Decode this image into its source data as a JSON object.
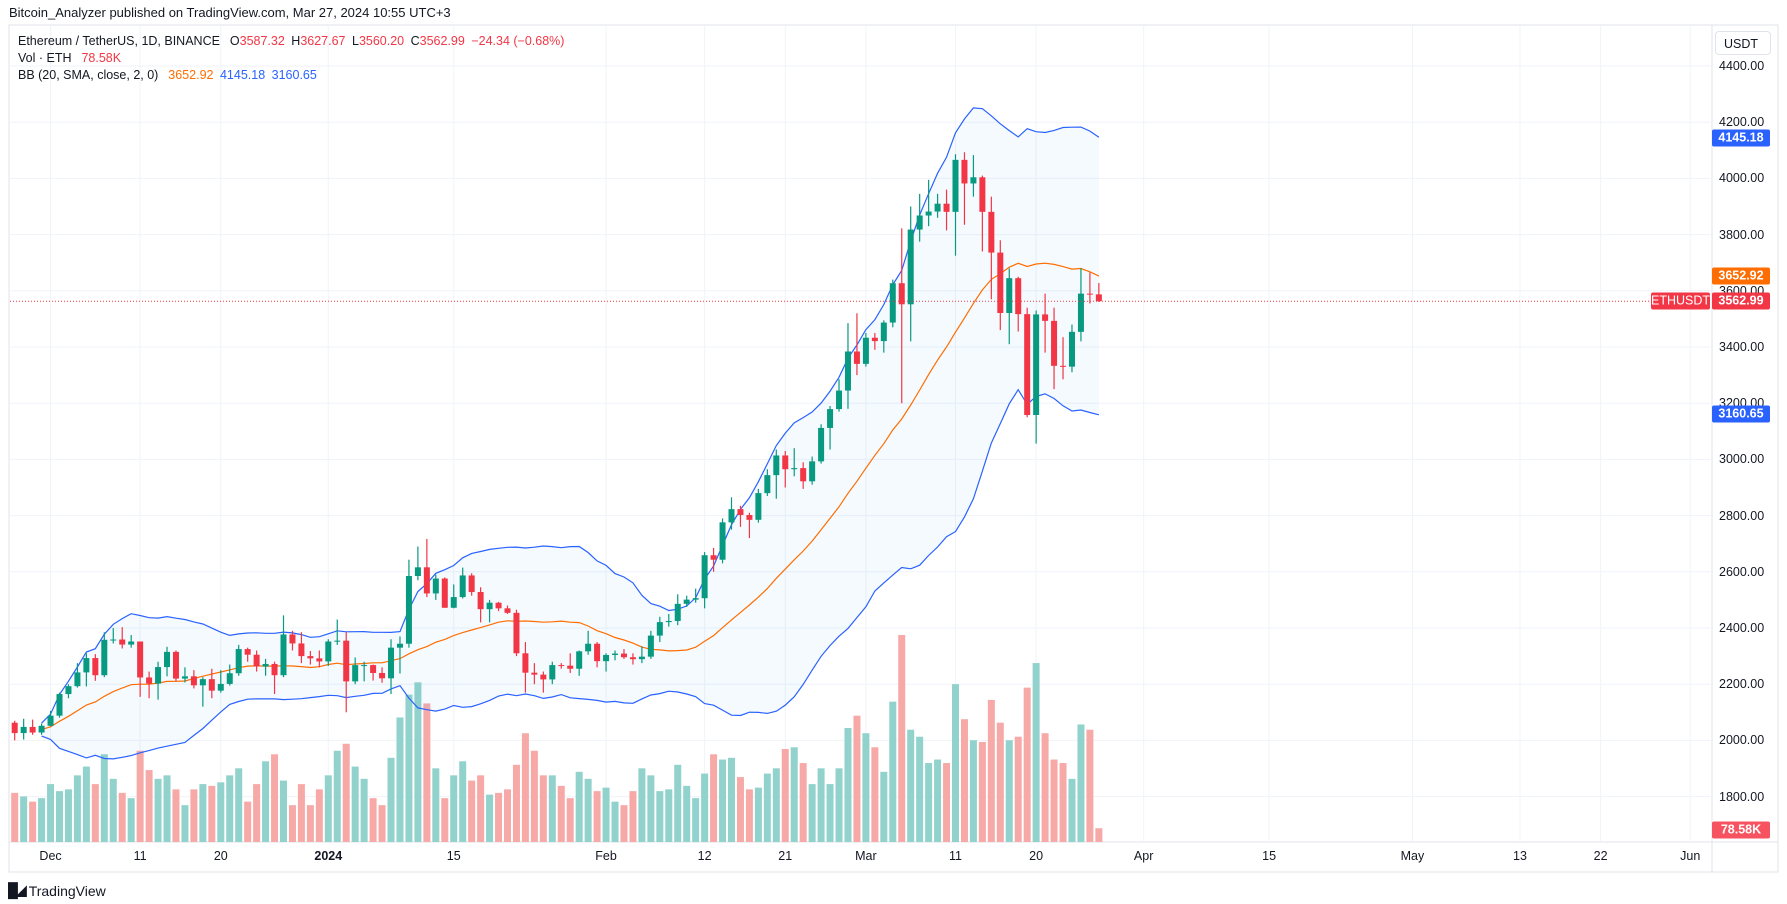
{
  "header": {
    "published": "Bitcoin_Analyzer published on TradingView.com, Mar 27, 2024 10:55 UTC+3"
  },
  "legend": {
    "symbol": "Ethereum / TetherUS, 1D, BINANCE",
    "o_label": "O",
    "o": "3587.32",
    "h_label": "H",
    "h": "3627.67",
    "l_label": "L",
    "l": "3560.20",
    "c_label": "C",
    "c": "3562.99",
    "change": "−24.34 (−0.68%)",
    "vol_label": "Vol · ETH",
    "vol": "78.58K",
    "bb_label": "BB (20, SMA, close, 2, 0)",
    "bb_basis": "3652.92",
    "bb_upper": "4145.18",
    "bb_lower": "3160.65"
  },
  "price_axis": {
    "currency": "USDT",
    "ticks": [
      "4400.00",
      "4200.00",
      "4000.00",
      "3800.00",
      "3600.00",
      "3400.00",
      "3200.00",
      "3000.00",
      "2800.00",
      "2600.00",
      "2400.00",
      "2200.00",
      "2000.00",
      "1800.00"
    ],
    "symbol_tag": "ETHUSDT",
    "last_price": "3562.99",
    "bb_upper": "4145.18",
    "bb_basis": "3652.92",
    "bb_lower": "3160.65",
    "volume": "78.58K"
  },
  "time_axis": {
    "labels": [
      {
        "text": "Dec",
        "date": "2023-12-01",
        "bold": false
      },
      {
        "text": "11",
        "date": "2023-12-11",
        "bold": false
      },
      {
        "text": "20",
        "date": "2023-12-20",
        "bold": false
      },
      {
        "text": "2024",
        "date": "2024-01-01",
        "bold": true
      },
      {
        "text": "15",
        "date": "2024-01-15",
        "bold": false
      },
      {
        "text": "Feb",
        "date": "2024-02-01",
        "bold": false
      },
      {
        "text": "12",
        "date": "2024-02-12",
        "bold": false
      },
      {
        "text": "21",
        "date": "2024-02-21",
        "bold": false
      },
      {
        "text": "Mar",
        "date": "2024-03-01",
        "bold": false
      },
      {
        "text": "11",
        "date": "2024-03-11",
        "bold": false
      },
      {
        "text": "20",
        "date": "2024-03-20",
        "bold": false
      },
      {
        "text": "Apr",
        "date": "2024-04-01",
        "bold": false
      },
      {
        "text": "15",
        "date": "2024-04-15",
        "bold": false
      },
      {
        "text": "May",
        "date": "2024-05-01",
        "bold": false
      },
      {
        "text": "13",
        "date": "2024-05-13",
        "bold": false
      },
      {
        "text": "22",
        "date": "2024-05-22",
        "bold": false
      },
      {
        "text": "Jun",
        "date": "2024-06-01",
        "bold": false
      }
    ]
  },
  "footer": {
    "logo": "TradingView"
  },
  "colors": {
    "up": "#089981",
    "down": "#f23645",
    "vol_up": "#92d2cc",
    "vol_down": "#f7a9a7",
    "bb_band": "#2962ff",
    "bb_basis": "#ff6d00",
    "bb_fill": "#2196f3",
    "grid": "#f0f3fa"
  },
  "chart_data": {
    "type": "candlestick",
    "symbol": "ETHUSDT",
    "interval": "1D",
    "ylim": [
      1660,
      4480
    ],
    "grid": true,
    "indicators": [
      {
        "name": "BB",
        "period": 20,
        "stddev": 2,
        "source": "close"
      },
      {
        "name": "Vol"
      }
    ],
    "columns": [
      "date",
      "open",
      "high",
      "low",
      "close",
      "volume_k"
    ],
    "rows": [
      [
        "2023-11-27",
        2063,
        2070,
        2000,
        2026,
        280
      ],
      [
        "2023-11-28",
        2026,
        2077,
        2003,
        2048,
        260
      ],
      [
        "2023-11-29",
        2048,
        2074,
        2020,
        2028,
        230
      ],
      [
        "2023-11-30",
        2028,
        2060,
        2020,
        2052,
        250
      ],
      [
        "2023-12-01",
        2052,
        2105,
        2050,
        2088,
        330
      ],
      [
        "2023-12-02",
        2088,
        2170,
        2081,
        2165,
        290
      ],
      [
        "2023-12-03",
        2165,
        2200,
        2150,
        2193,
        300
      ],
      [
        "2023-12-04",
        2193,
        2275,
        2188,
        2242,
        380
      ],
      [
        "2023-12-05",
        2242,
        2310,
        2192,
        2293,
        430
      ],
      [
        "2023-12-06",
        2293,
        2307,
        2212,
        2232,
        330
      ],
      [
        "2023-12-07",
        2232,
        2385,
        2225,
        2358,
        500
      ],
      [
        "2023-12-08",
        2358,
        2400,
        2345,
        2359,
        360
      ],
      [
        "2023-12-09",
        2359,
        2403,
        2327,
        2341,
        280
      ],
      [
        "2023-12-10",
        2341,
        2375,
        2330,
        2352,
        250
      ],
      [
        "2023-12-11",
        2352,
        2352,
        2155,
        2224,
        520
      ],
      [
        "2023-12-12",
        2224,
        2245,
        2150,
        2202,
        410
      ],
      [
        "2023-12-13",
        2202,
        2280,
        2145,
        2261,
        360
      ],
      [
        "2023-12-14",
        2261,
        2333,
        2228,
        2315,
        380
      ],
      [
        "2023-12-15",
        2315,
        2320,
        2210,
        2220,
        300
      ],
      [
        "2023-12-16",
        2220,
        2260,
        2206,
        2228,
        210
      ],
      [
        "2023-12-17",
        2228,
        2250,
        2185,
        2196,
        300
      ],
      [
        "2023-12-18",
        2196,
        2225,
        2120,
        2218,
        330
      ],
      [
        "2023-12-19",
        2218,
        2255,
        2150,
        2177,
        320
      ],
      [
        "2023-12-20",
        2177,
        2250,
        2170,
        2201,
        340
      ],
      [
        "2023-12-21",
        2201,
        2270,
        2195,
        2239,
        380
      ],
      [
        "2023-12-22",
        2239,
        2340,
        2230,
        2325,
        420
      ],
      [
        "2023-12-23",
        2325,
        2330,
        2280,
        2305,
        230
      ],
      [
        "2023-12-24",
        2305,
        2320,
        2245,
        2263,
        330
      ],
      [
        "2023-12-25",
        2263,
        2290,
        2230,
        2272,
        460
      ],
      [
        "2023-12-26",
        2272,
        2280,
        2165,
        2232,
        500
      ],
      [
        "2023-12-27",
        2232,
        2445,
        2225,
        2377,
        350
      ],
      [
        "2023-12-28",
        2377,
        2390,
        2320,
        2345,
        210
      ],
      [
        "2023-12-29",
        2345,
        2385,
        2275,
        2300,
        330
      ],
      [
        "2023-12-30",
        2300,
        2318,
        2270,
        2292,
        210
      ],
      [
        "2023-12-31",
        2292,
        2320,
        2260,
        2281,
        300
      ],
      [
        "2024-01-01",
        2281,
        2360,
        2265,
        2352,
        380
      ],
      [
        "2024-01-02",
        2352,
        2430,
        2340,
        2355,
        520
      ],
      [
        "2024-01-03",
        2355,
        2385,
        2100,
        2210,
        560
      ],
      [
        "2024-01-04",
        2210,
        2295,
        2200,
        2268,
        430
      ],
      [
        "2024-01-05",
        2268,
        2280,
        2210,
        2268,
        360
      ],
      [
        "2024-01-06",
        2268,
        2270,
        2213,
        2240,
        250
      ],
      [
        "2024-01-07",
        2240,
        2260,
        2205,
        2221,
        210
      ],
      [
        "2024-01-08",
        2221,
        2360,
        2165,
        2330,
        480
      ],
      [
        "2024-01-09",
        2330,
        2370,
        2238,
        2344,
        710
      ],
      [
        "2024-01-10",
        2344,
        2643,
        2330,
        2585,
        840
      ],
      [
        "2024-01-11",
        2585,
        2690,
        2570,
        2616,
        910
      ],
      [
        "2024-01-12",
        2616,
        2717,
        2510,
        2523,
        790
      ],
      [
        "2024-01-13",
        2523,
        2590,
        2500,
        2576,
        420
      ],
      [
        "2024-01-14",
        2576,
        2580,
        2472,
        2472,
        250
      ],
      [
        "2024-01-15",
        2472,
        2555,
        2470,
        2510,
        380
      ],
      [
        "2024-01-16",
        2510,
        2615,
        2505,
        2587,
        460
      ],
      [
        "2024-01-17",
        2587,
        2595,
        2515,
        2528,
        350
      ],
      [
        "2024-01-18",
        2528,
        2545,
        2420,
        2467,
        380
      ],
      [
        "2024-01-19",
        2467,
        2500,
        2420,
        2490,
        270
      ],
      [
        "2024-01-20",
        2490,
        2493,
        2460,
        2470,
        280
      ],
      [
        "2024-01-21",
        2470,
        2480,
        2450,
        2454,
        300
      ],
      [
        "2024-01-22",
        2454,
        2465,
        2300,
        2310,
        440
      ],
      [
        "2024-01-23",
        2310,
        2350,
        2170,
        2241,
        620
      ],
      [
        "2024-01-24",
        2241,
        2275,
        2200,
        2234,
        520
      ],
      [
        "2024-01-25",
        2234,
        2245,
        2170,
        2217,
        380
      ],
      [
        "2024-01-26",
        2217,
        2280,
        2200,
        2268,
        380
      ],
      [
        "2024-01-27",
        2268,
        2275,
        2255,
        2266,
        320
      ],
      [
        "2024-01-28",
        2266,
        2310,
        2240,
        2255,
        250
      ],
      [
        "2024-01-29",
        2255,
        2320,
        2230,
        2317,
        400
      ],
      [
        "2024-01-30",
        2317,
        2390,
        2305,
        2344,
        360
      ],
      [
        "2024-01-31",
        2344,
        2350,
        2260,
        2282,
        290
      ],
      [
        "2024-02-01",
        2282,
        2310,
        2245,
        2304,
        310
      ],
      [
        "2024-02-02",
        2304,
        2320,
        2285,
        2309,
        230
      ],
      [
        "2024-02-03",
        2309,
        2325,
        2290,
        2296,
        210
      ],
      [
        "2024-02-04",
        2296,
        2310,
        2270,
        2289,
        290
      ],
      [
        "2024-02-05",
        2289,
        2335,
        2275,
        2298,
        420
      ],
      [
        "2024-02-06",
        2298,
        2390,
        2290,
        2373,
        380
      ],
      [
        "2024-02-07",
        2373,
        2440,
        2350,
        2421,
        290
      ],
      [
        "2024-02-08",
        2421,
        2450,
        2405,
        2425,
        300
      ],
      [
        "2024-02-09",
        2425,
        2520,
        2410,
        2486,
        440
      ],
      [
        "2024-02-10",
        2486,
        2515,
        2475,
        2501,
        320
      ],
      [
        "2024-02-11",
        2501,
        2540,
        2490,
        2506,
        250
      ],
      [
        "2024-02-12",
        2506,
        2670,
        2470,
        2659,
        390
      ],
      [
        "2024-02-13",
        2659,
        2685,
        2600,
        2643,
        500
      ],
      [
        "2024-02-14",
        2643,
        2790,
        2630,
        2776,
        470
      ],
      [
        "2024-02-15",
        2776,
        2865,
        2750,
        2823,
        480
      ],
      [
        "2024-02-16",
        2823,
        2835,
        2760,
        2802,
        370
      ],
      [
        "2024-02-17",
        2802,
        2810,
        2720,
        2785,
        300
      ],
      [
        "2024-02-18",
        2785,
        2895,
        2775,
        2880,
        310
      ],
      [
        "2024-02-19",
        2880,
        2965,
        2870,
        2944,
        390
      ],
      [
        "2024-02-20",
        2944,
        3035,
        2860,
        3014,
        420
      ],
      [
        "2024-02-21",
        3014,
        3030,
        2900,
        2965,
        530
      ],
      [
        "2024-02-22",
        2965,
        3040,
        2940,
        2969,
        540
      ],
      [
        "2024-02-23",
        2969,
        2990,
        2895,
        2922,
        450
      ],
      [
        "2024-02-24",
        2922,
        3010,
        2910,
        2993,
        330
      ],
      [
        "2024-02-25",
        2993,
        3125,
        2985,
        3112,
        420
      ],
      [
        "2024-02-26",
        3112,
        3190,
        3035,
        3179,
        330
      ],
      [
        "2024-02-27",
        3179,
        3285,
        3170,
        3245,
        420
      ],
      [
        "2024-02-28",
        3245,
        3485,
        3180,
        3384,
        650
      ],
      [
        "2024-02-29",
        3384,
        3520,
        3300,
        3340,
        720
      ],
      [
        "2024-03-01",
        3340,
        3450,
        3330,
        3433,
        620
      ],
      [
        "2024-03-02",
        3433,
        3450,
        3390,
        3421,
        540
      ],
      [
        "2024-03-03",
        3421,
        3495,
        3380,
        3487,
        400
      ],
      [
        "2024-03-04",
        3487,
        3640,
        3470,
        3627,
        800
      ],
      [
        "2024-03-05",
        3627,
        3822,
        3200,
        3552,
        1180
      ],
      [
        "2024-03-06",
        3552,
        3900,
        3420,
        3818,
        640
      ],
      [
        "2024-03-07",
        3818,
        3945,
        3775,
        3868,
        600
      ],
      [
        "2024-03-08",
        3868,
        3995,
        3830,
        3882,
        450
      ],
      [
        "2024-03-09",
        3882,
        3945,
        3860,
        3910,
        470
      ],
      [
        "2024-03-10",
        3910,
        3960,
        3815,
        3881,
        450
      ],
      [
        "2024-03-11",
        3881,
        4086,
        3725,
        4066,
        900
      ],
      [
        "2024-03-12",
        4066,
        4093,
        3835,
        3982,
        700
      ],
      [
        "2024-03-13",
        3982,
        4083,
        3935,
        4004,
        580
      ],
      [
        "2024-03-14",
        4004,
        4010,
        3740,
        3881,
        570
      ],
      [
        "2024-03-15",
        3881,
        3935,
        3570,
        3736,
        810
      ],
      [
        "2024-03-16",
        3736,
        3780,
        3460,
        3521,
        680
      ],
      [
        "2024-03-17",
        3521,
        3680,
        3410,
        3645,
        580
      ],
      [
        "2024-03-18",
        3645,
        3650,
        3455,
        3517,
        600
      ],
      [
        "2024-03-19",
        3517,
        3540,
        3150,
        3158,
        880
      ],
      [
        "2024-03-20",
        3158,
        3530,
        3056,
        3516,
        1020
      ],
      [
        "2024-03-21",
        3516,
        3590,
        3380,
        3493,
        620
      ],
      [
        "2024-03-22",
        3493,
        3540,
        3250,
        3333,
        470
      ],
      [
        "2024-03-23",
        3333,
        3435,
        3285,
        3330,
        450
      ],
      [
        "2024-03-24",
        3330,
        3480,
        3310,
        3454,
        360
      ],
      [
        "2024-03-25",
        3454,
        3680,
        3420,
        3590,
        670
      ],
      [
        "2024-03-26",
        3590,
        3665,
        3555,
        3587,
        640
      ],
      [
        "2024-03-27",
        3587.32,
        3627.67,
        3560.2,
        3562.99,
        78.58
      ]
    ]
  }
}
